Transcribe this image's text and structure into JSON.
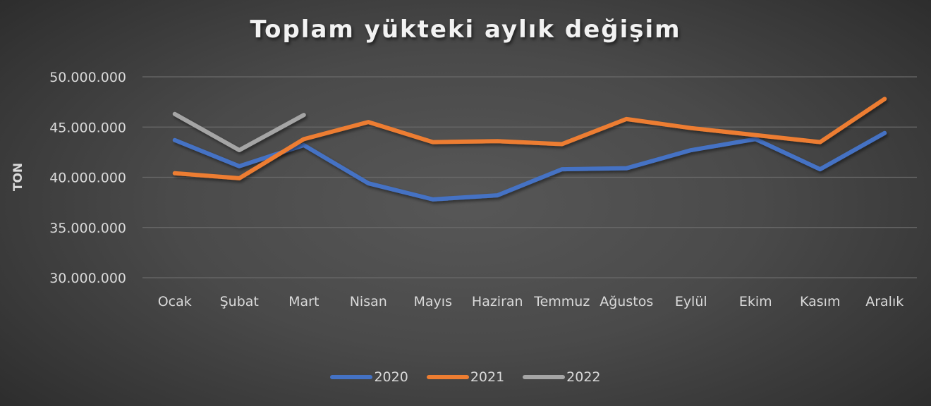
{
  "chart_data": {
    "type": "line",
    "title": "Toplam yükteki aylık değişim",
    "xlabel": "",
    "ylabel": "TON",
    "ylim": [
      30000000,
      50000000
    ],
    "yticks": [
      50000000,
      45000000,
      40000000,
      35000000,
      30000000
    ],
    "ytick_labels": [
      "50.000.000",
      "45.000.000",
      "40.000.000",
      "35.000.000",
      "30.000.000"
    ],
    "grid": true,
    "legend_position": "bottom",
    "categories": [
      "Ocak",
      "Şubat",
      "Mart",
      "Nisan",
      "Mayıs",
      "Haziran",
      "Temmuz",
      "Ağustos",
      "Eylül",
      "Ekim",
      "Kasım",
      "Aralık"
    ],
    "series": [
      {
        "name": "2020",
        "color": "#4472c4",
        "values": [
          43700000,
          41100000,
          43200000,
          39400000,
          37800000,
          38200000,
          40800000,
          40900000,
          42700000,
          43800000,
          40800000,
          44400000
        ]
      },
      {
        "name": "2021",
        "color": "#ed7d31",
        "values": [
          40400000,
          39900000,
          43800000,
          45500000,
          43500000,
          43600000,
          43300000,
          45800000,
          44900000,
          44200000,
          43500000,
          47800000
        ]
      },
      {
        "name": "2022",
        "color": "#a5a5a5",
        "values": [
          46300000,
          42700000,
          46200000
        ]
      }
    ]
  }
}
